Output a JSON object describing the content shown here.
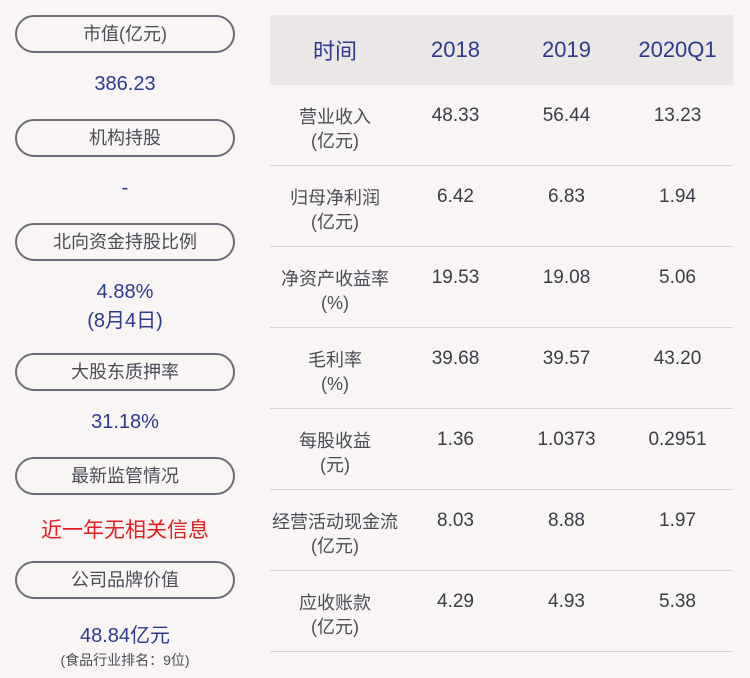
{
  "left_panel": {
    "items": [
      {
        "label": "市值(亿元)",
        "value": "386.23"
      },
      {
        "label": "机构持股",
        "value": "-"
      },
      {
        "label": "北向资金持股比例",
        "value": "4.88%",
        "value2": "(8月4日)"
      },
      {
        "label": "大股东质押率",
        "value": "31.18%"
      },
      {
        "label": "最新监管情况",
        "value": "近一年无相关信息"
      },
      {
        "label": "公司品牌价值",
        "value": "48.84亿元",
        "note": "(食品行业排名：9位)"
      }
    ]
  },
  "table": {
    "headers": [
      "时间",
      "2018",
      "2019",
      "2020Q1"
    ],
    "rows": [
      {
        "name": "营业收入",
        "unit": "(亿元)",
        "values": [
          "48.33",
          "56.44",
          "13.23"
        ]
      },
      {
        "name": "归母净利润",
        "unit": "(亿元)",
        "values": [
          "6.42",
          "6.83",
          "1.94"
        ]
      },
      {
        "name": "净资产收益率",
        "unit": "(%)",
        "values": [
          "19.53",
          "19.08",
          "5.06"
        ]
      },
      {
        "name": "毛利率",
        "unit": "(%)",
        "values": [
          "39.68",
          "39.57",
          "43.20"
        ]
      },
      {
        "name": "每股收益",
        "unit": "(元)",
        "values": [
          "1.36",
          "1.0373",
          "0.2951"
        ]
      },
      {
        "name": "经营活动现金流",
        "unit": "(亿元)",
        "values": [
          "8.03",
          "8.88",
          "1.97"
        ]
      },
      {
        "name": "应收账款",
        "unit": "(亿元)",
        "values": [
          "4.29",
          "4.93",
          "5.38"
        ]
      }
    ]
  },
  "colors": {
    "accent": "#2d3a8c",
    "alert": "#e02020",
    "header_bg": "#ebe7e7",
    "page_bg": "#f9f5f5"
  }
}
